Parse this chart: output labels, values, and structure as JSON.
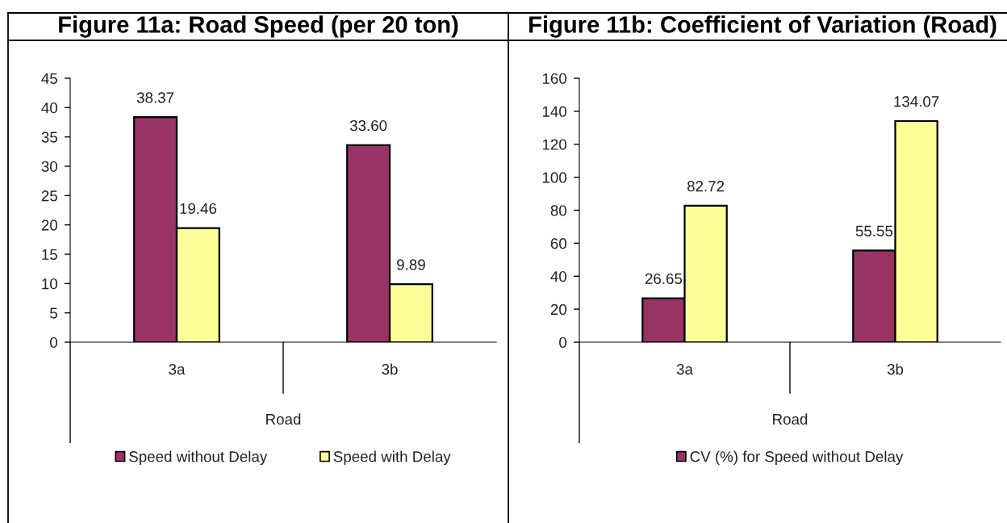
{
  "chart_data": [
    {
      "type": "bar",
      "title": "Figure 11a: Road Speed (per 20 ton)",
      "xlabel": "Road",
      "categories": [
        "3a",
        "3b"
      ],
      "series": [
        {
          "name": "Speed without Delay",
          "color": "#993366",
          "values": [
            38.37,
            33.6
          ],
          "value_labels": [
            "38.37",
            "33.60"
          ]
        },
        {
          "name": "Speed with Delay",
          "color": "#ffff99",
          "values": [
            19.46,
            9.89
          ],
          "value_labels": [
            "19.46",
            "9.89"
          ]
        }
      ],
      "ylim": [
        0,
        45
      ],
      "yticks": [
        0,
        5,
        10,
        15,
        20,
        25,
        30,
        35,
        40,
        45
      ],
      "grid": false,
      "legend": "bottom"
    },
    {
      "type": "bar",
      "title": "Figure 11b: Coefficient of Variation (Road)",
      "xlabel": "Road",
      "categories": [
        "3a",
        "3b"
      ],
      "series": [
        {
          "name": "CV (%) for Speed without Delay",
          "color": "#993366",
          "values": [
            26.65,
            55.55
          ],
          "value_labels": [
            "26.65",
            "55.55"
          ]
        },
        {
          "color": "#ffff99",
          "values": [
            82.72,
            134.07
          ],
          "value_labels": [
            "82.72",
            "134.07"
          ]
        }
      ],
      "ylim": [
        0,
        160
      ],
      "yticks": [
        0,
        20,
        40,
        60,
        80,
        100,
        120,
        140,
        160
      ],
      "grid": false,
      "legend": "bottom"
    }
  ]
}
